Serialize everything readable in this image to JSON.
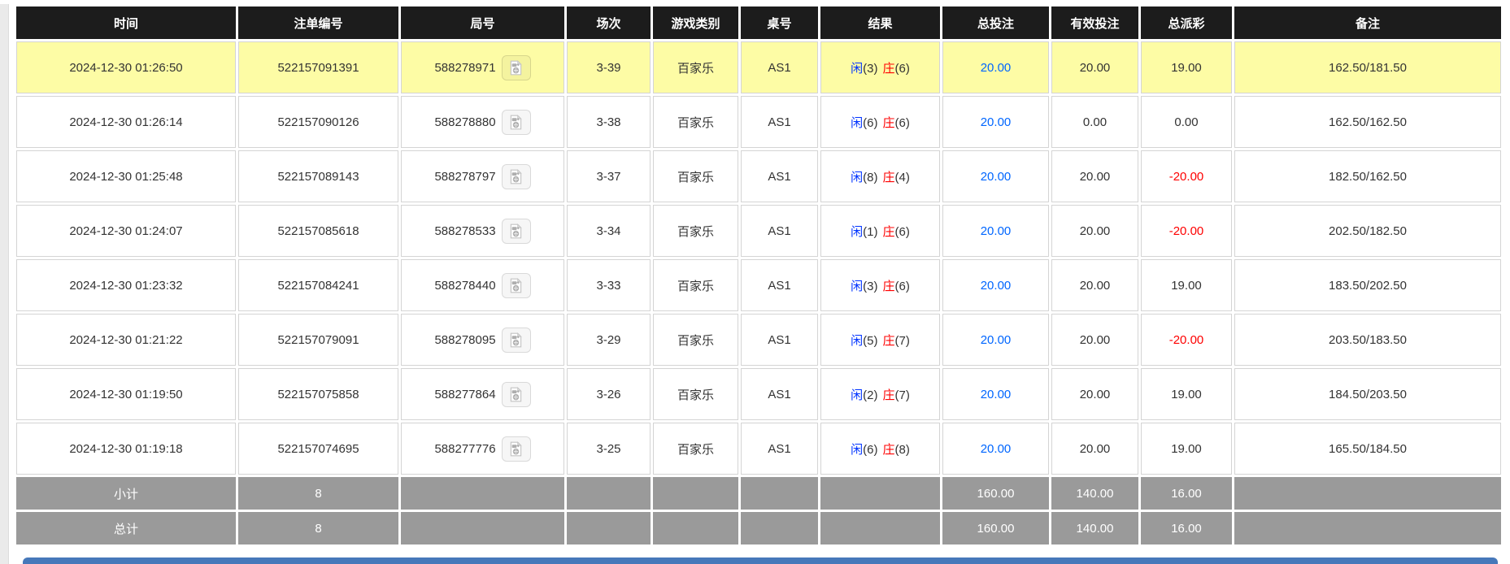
{
  "colors": {
    "header_bg": "#1c1c1c",
    "highlight_row_yellow": "#fdfca5",
    "footer_gray": "#9a9a9a",
    "total_bet_blue": "#0066ff",
    "player_blue": "#0033ff",
    "banker_red": "#fe0000",
    "negative_red": "#fe0000",
    "bottom_bar_blue": "#4678ba"
  },
  "icons": {
    "video": "video-icon"
  },
  "table": {
    "headers": [
      "时间",
      "注单编号",
      "局号",
      "场次",
      "游戏类别",
      "桌号",
      "结果",
      "总投注",
      "有效投注",
      "总派彩",
      "备注"
    ],
    "header_keys": [
      "time",
      "bet-id",
      "round-id",
      "session",
      "game-type",
      "table-no",
      "result",
      "total-bet",
      "valid-bet",
      "total-payout",
      "remark"
    ],
    "rows": [
      {
        "time": "2024-12-30 01:26:50",
        "bet_id": "522157091391",
        "round_id": "588278971",
        "session": "3-39",
        "game": "百家乐",
        "table_no": "AS1",
        "result": {
          "player_label": "闲",
          "player_score": "(3)",
          "banker_label": "庄",
          "banker_score": "(6)"
        },
        "total_bet": "20.00",
        "valid_bet": "20.00",
        "payout": "19.00",
        "remark": "162.50/181.50",
        "highlighted": true
      },
      {
        "time": "2024-12-30 01:26:14",
        "bet_id": "522157090126",
        "round_id": "588278880",
        "session": "3-38",
        "game": "百家乐",
        "table_no": "AS1",
        "result": {
          "player_label": "闲",
          "player_score": "(6)",
          "banker_label": "庄",
          "banker_score": "(6)"
        },
        "total_bet": "20.00",
        "valid_bet": "0.00",
        "payout": "0.00",
        "remark": "162.50/162.50",
        "highlighted": false
      },
      {
        "time": "2024-12-30 01:25:48",
        "bet_id": "522157089143",
        "round_id": "588278797",
        "session": "3-37",
        "game": "百家乐",
        "table_no": "AS1",
        "result": {
          "player_label": "闲",
          "player_score": "(8)",
          "banker_label": "庄",
          "banker_score": "(4)"
        },
        "total_bet": "20.00",
        "valid_bet": "20.00",
        "payout": "-20.00",
        "remark": "182.50/162.50",
        "highlighted": false
      },
      {
        "time": "2024-12-30 01:24:07",
        "bet_id": "522157085618",
        "round_id": "588278533",
        "session": "3-34",
        "game": "百家乐",
        "table_no": "AS1",
        "result": {
          "player_label": "闲",
          "player_score": "(1)",
          "banker_label": "庄",
          "banker_score": "(6)"
        },
        "total_bet": "20.00",
        "valid_bet": "20.00",
        "payout": "-20.00",
        "remark": "202.50/182.50",
        "highlighted": false
      },
      {
        "time": "2024-12-30 01:23:32",
        "bet_id": "522157084241",
        "round_id": "588278440",
        "session": "3-33",
        "game": "百家乐",
        "table_no": "AS1",
        "result": {
          "player_label": "闲",
          "player_score": "(3)",
          "banker_label": "庄",
          "banker_score": "(6)"
        },
        "total_bet": "20.00",
        "valid_bet": "20.00",
        "payout": "19.00",
        "remark": "183.50/202.50",
        "highlighted": false
      },
      {
        "time": "2024-12-30 01:21:22",
        "bet_id": "522157079091",
        "round_id": "588278095",
        "session": "3-29",
        "game": "百家乐",
        "table_no": "AS1",
        "result": {
          "player_label": "闲",
          "player_score": "(5)",
          "banker_label": "庄",
          "banker_score": "(7)"
        },
        "total_bet": "20.00",
        "valid_bet": "20.00",
        "payout": "-20.00",
        "remark": "203.50/183.50",
        "highlighted": false
      },
      {
        "time": "2024-12-30 01:19:50",
        "bet_id": "522157075858",
        "round_id": "588277864",
        "session": "3-26",
        "game": "百家乐",
        "table_no": "AS1",
        "result": {
          "player_label": "闲",
          "player_score": "(2)",
          "banker_label": "庄",
          "banker_score": "(7)"
        },
        "total_bet": "20.00",
        "valid_bet": "20.00",
        "payout": "19.00",
        "remark": "184.50/203.50",
        "highlighted": false
      },
      {
        "time": "2024-12-30 01:19:18",
        "bet_id": "522157074695",
        "round_id": "588277776",
        "session": "3-25",
        "game": "百家乐",
        "table_no": "AS1",
        "result": {
          "player_label": "闲",
          "player_score": "(6)",
          "banker_label": "庄",
          "banker_score": "(8)"
        },
        "total_bet": "20.00",
        "valid_bet": "20.00",
        "payout": "19.00",
        "remark": "165.50/184.50",
        "highlighted": false
      }
    ],
    "subtotal": {
      "label": "小计",
      "count": "8",
      "total_bet": "160.00",
      "valid_bet": "140.00",
      "payout": "16.00"
    },
    "total": {
      "label": "总计",
      "count": "8",
      "total_bet": "160.00",
      "valid_bet": "140.00",
      "payout": "16.00"
    }
  }
}
